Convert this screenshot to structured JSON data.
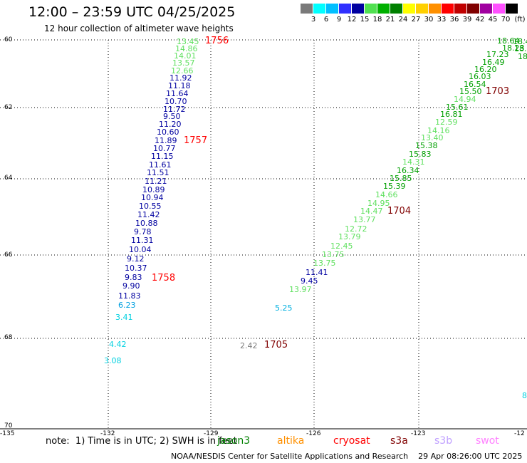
{
  "header": {
    "title": "12:00 – 23:59 UTC 04/25/2025",
    "subtitle": "12 hour collection of altimeter wave heights"
  },
  "legend": {
    "unit_label": "(ft)",
    "entries": [
      {
        "label": "",
        "color": "#7a7a7a"
      },
      {
        "label": "3",
        "color": "#00ffff"
      },
      {
        "label": "6",
        "color": "#00bfff"
      },
      {
        "label": "9",
        "color": "#3030ff"
      },
      {
        "label": "12",
        "color": "#0000a0"
      },
      {
        "label": "15",
        "color": "#50e050"
      },
      {
        "label": "18",
        "color": "#00b000"
      },
      {
        "label": "21",
        "color": "#008000"
      },
      {
        "label": "24",
        "color": "#ffff00"
      },
      {
        "label": "27",
        "color": "#ffd000"
      },
      {
        "label": "30",
        "color": "#ff9000"
      },
      {
        "label": "33",
        "color": "#ff0000"
      },
      {
        "label": "36",
        "color": "#c00000"
      },
      {
        "label": "39",
        "color": "#800000"
      },
      {
        "label": "42",
        "color": "#a000a0"
      },
      {
        "label": "45",
        "color": "#ff50ff"
      },
      {
        "label": "70",
        "color": "#000000"
      }
    ]
  },
  "axes": {
    "lat_labels": [
      "60",
      "62",
      "64",
      "66",
      "68",
      "70"
    ],
    "lon_labels": [
      "-135",
      "-132",
      "-129",
      "-126",
      "-123",
      "-12"
    ]
  },
  "tracks": [
    {
      "values": [
        {
          "text": "13.45",
          "color": "#60e060"
        },
        {
          "text": "14.86",
          "color": "#60e060"
        },
        {
          "text": "14.01",
          "color": "#60e060"
        },
        {
          "text": "13.57",
          "color": "#60e060"
        },
        {
          "text": "12.66",
          "color": "#60e060"
        },
        {
          "text": "11.92",
          "color": "#0000a0"
        },
        {
          "text": "11.18",
          "color": "#0000a0"
        },
        {
          "text": "11.64",
          "color": "#0000a0"
        },
        {
          "text": "10.70",
          "color": "#0000a0"
        },
        {
          "text": "11.72",
          "color": "#0000a0"
        },
        {
          "text": "9.50",
          "color": "#0000a0"
        },
        {
          "text": "11.20",
          "color": "#0000a0"
        },
        {
          "text": "10.60",
          "color": "#0000a0"
        },
        {
          "text": "11.89",
          "color": "#0000a0"
        },
        {
          "text": "10.77",
          "color": "#0000a0"
        },
        {
          "text": "11.15",
          "color": "#0000a0"
        },
        {
          "text": "11.61",
          "color": "#0000a0"
        },
        {
          "text": "11.51",
          "color": "#0000a0"
        },
        {
          "text": "11.21",
          "color": "#0000a0"
        },
        {
          "text": "10.89",
          "color": "#0000a0"
        },
        {
          "text": "10.94",
          "color": "#0000a0"
        },
        {
          "text": "10.55",
          "color": "#0000a0"
        },
        {
          "text": "11.42",
          "color": "#0000a0"
        },
        {
          "text": "10.88",
          "color": "#0000a0"
        },
        {
          "text": "9.78",
          "color": "#0000a0"
        },
        {
          "text": "11.31",
          "color": "#0000a0"
        },
        {
          "text": "10.04",
          "color": "#0000a0"
        },
        {
          "text": "9.12",
          "color": "#0000a0"
        },
        {
          "text": "10.37",
          "color": "#0000a0"
        },
        {
          "text": "9.83",
          "color": "#0000a0"
        },
        {
          "text": "9.90",
          "color": "#0000a0"
        },
        {
          "text": "11.83",
          "color": "#0000a0"
        },
        {
          "text": "6.23",
          "color": "#00a0e0"
        },
        {
          "text": "3.41",
          "color": "#00d0e0"
        },
        {
          "text": "4.42",
          "color": "#00d0e0"
        },
        {
          "text": "3.08",
          "color": "#00d0e0"
        }
      ],
      "times": [
        {
          "text": "1756",
          "color": "#ff0000"
        },
        {
          "text": "1757",
          "color": "#ff0000"
        },
        {
          "text": "1758",
          "color": "#ff0000"
        }
      ]
    },
    {
      "values": [
        {
          "text": "18.64",
          "color": "#00a000"
        },
        {
          "text": "18.44",
          "color": "#00a000"
        },
        {
          "text": "18.23",
          "color": "#00a000"
        },
        {
          "text": "18.8",
          "color": "#00a000"
        },
        {
          "text": "17.23",
          "color": "#00a000"
        },
        {
          "text": "18",
          "color": "#00a000"
        },
        {
          "text": "16.49",
          "color": "#00a000"
        },
        {
          "text": "16.20",
          "color": "#00a000"
        },
        {
          "text": "16.03",
          "color": "#00a000"
        },
        {
          "text": "16.54",
          "color": "#00a000"
        },
        {
          "text": "15.50",
          "color": "#00a000"
        },
        {
          "text": "14.94",
          "color": "#60e060"
        },
        {
          "text": "15.61",
          "color": "#00a000"
        },
        {
          "text": "16.81",
          "color": "#00a000"
        },
        {
          "text": "12.59",
          "color": "#60e060"
        },
        {
          "text": "14.16",
          "color": "#60e060"
        },
        {
          "text": "13.40",
          "color": "#60e060"
        },
        {
          "text": "15.38",
          "color": "#00a000"
        },
        {
          "text": "15.83",
          "color": "#00a000"
        },
        {
          "text": "14.31",
          "color": "#60e060"
        },
        {
          "text": "16.34",
          "color": "#00a000"
        },
        {
          "text": "15.85",
          "color": "#00a000"
        },
        {
          "text": "15.39",
          "color": "#00a000"
        },
        {
          "text": "14.66",
          "color": "#60e060"
        },
        {
          "text": "14.95",
          "color": "#60e060"
        },
        {
          "text": "14.47",
          "color": "#60e060"
        },
        {
          "text": "13.77",
          "color": "#60e060"
        },
        {
          "text": "12.72",
          "color": "#60e060"
        },
        {
          "text": "13.79",
          "color": "#60e060"
        },
        {
          "text": "12.45",
          "color": "#60e060"
        },
        {
          "text": "13.75",
          "color": "#60e060"
        },
        {
          "text": "13.75",
          "color": "#60e060"
        },
        {
          "text": "11.41",
          "color": "#0000a0"
        },
        {
          "text": "9.45",
          "color": "#0000a0"
        },
        {
          "text": "13.97",
          "color": "#60e060"
        },
        {
          "text": "5.25",
          "color": "#00b0e0"
        },
        {
          "text": "2.42",
          "color": "#7a7a7a"
        },
        {
          "text": "8",
          "color": "#00d0e0"
        }
      ],
      "times": [
        {
          "text": "1703",
          "color": "#800000"
        },
        {
          "text": "1704",
          "color": "#800000"
        },
        {
          "text": "1705",
          "color": "#800000"
        }
      ]
    }
  ],
  "footer": {
    "note": "note:  1) Time is in UTC; 2) SWH is in feet",
    "satellites": [
      {
        "name": "jason3",
        "color": "#008000"
      },
      {
        "name": "altika",
        "color": "#ff9000"
      },
      {
        "name": "cryosat",
        "color": "#ff0000"
      },
      {
        "name": "s3a",
        "color": "#800000"
      },
      {
        "name": "s3b",
        "color": "#c0a0ff"
      },
      {
        "name": "swot",
        "color": "#ff80ff"
      }
    ],
    "credit": "NOAA/NESDIS Center for Satellite Applications and Research    29 Apr 08:26:00 UTC 2025"
  }
}
